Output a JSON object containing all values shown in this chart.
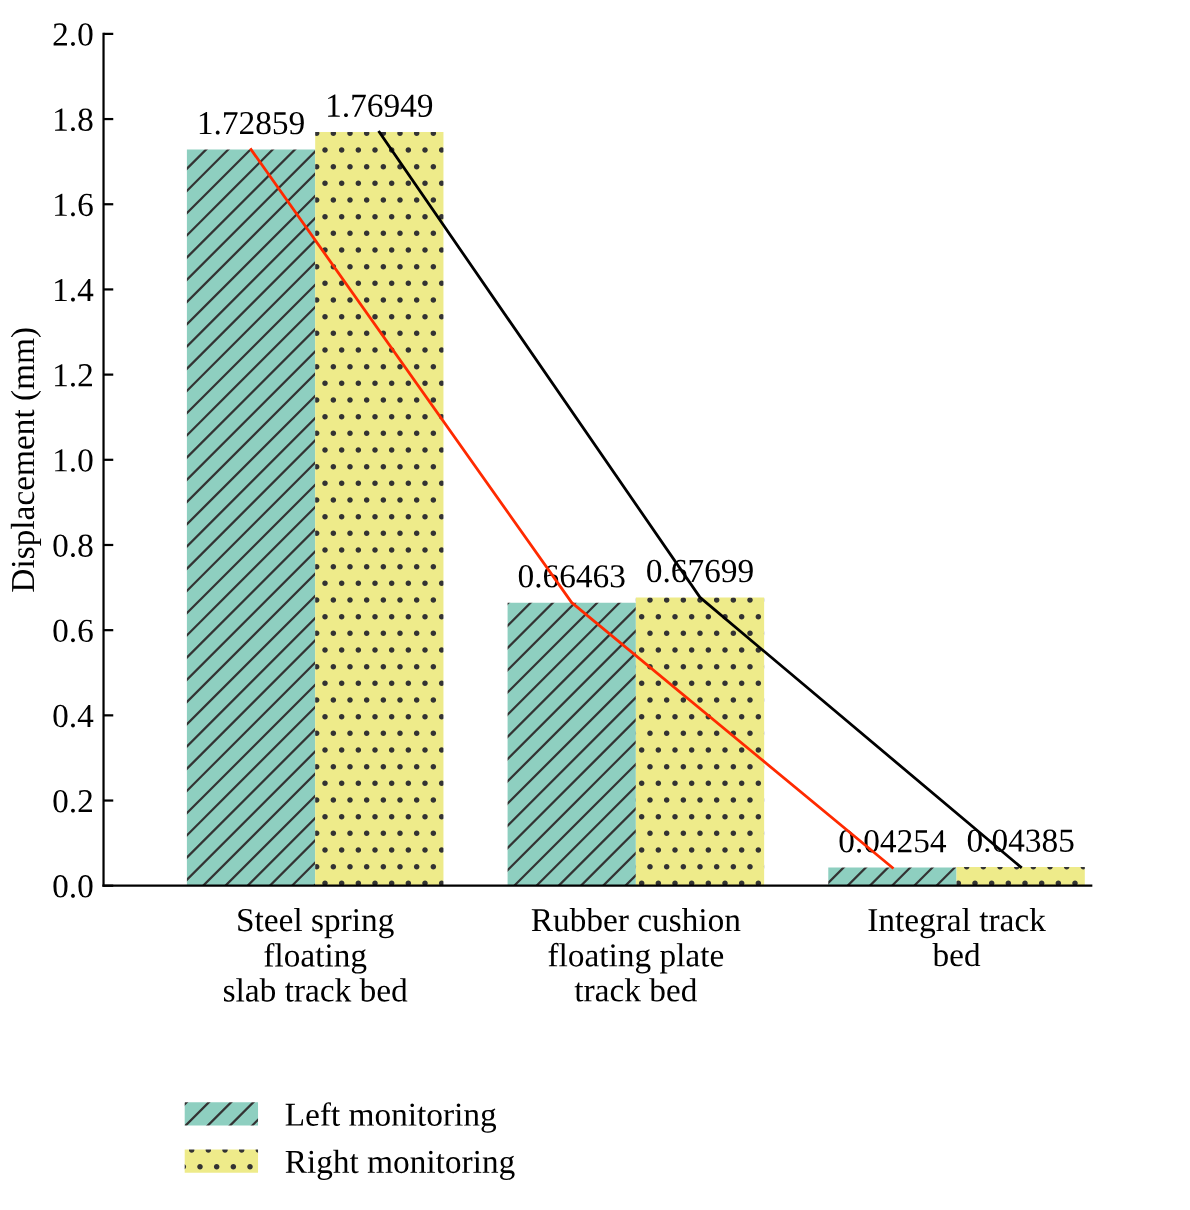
{
  "chart_data": {
    "type": "bar",
    "ylabel": "Displacement (mm)",
    "categories": [
      "Steel spring\nfloating\nslab track bed",
      "Rubber cushion\nfloating plate\ntrack bed",
      "Integral track\nbed"
    ],
    "series": [
      {
        "name": "Left monitoring",
        "color": "#8ecfc0",
        "values": [
          1.72859,
          0.66463,
          0.04254
        ],
        "value_labels": [
          "1.72859",
          "0.66463",
          "0.04254"
        ]
      },
      {
        "name": "Right monitoring",
        "color": "#eeeb8a",
        "values": [
          1.76949,
          0.67699,
          0.04385
        ],
        "value_labels": [
          "1.76949",
          "0.67699",
          "0.04385"
        ]
      },
      {
        "type": "line",
        "color": "#ff2a00",
        "values": [
          1.72859,
          0.66463,
          0.04254
        ]
      },
      {
        "type": "line",
        "color": "#000000",
        "values": [
          1.76949,
          0.67699,
          0.04385
        ]
      }
    ],
    "ylim": [
      0,
      2.0
    ],
    "yticks": [
      {
        "value": 0,
        "label": "0.0"
      },
      {
        "value": 0.2,
        "label": "0.2"
      },
      {
        "value": 0.4,
        "label": "0.4"
      },
      {
        "value": 0.6,
        "label": "0.6"
      },
      {
        "value": 0.8,
        "label": "0.8"
      },
      {
        "value": 1.0,
        "label": "1.0"
      },
      {
        "value": 1.2,
        "label": "1.2"
      },
      {
        "value": 1.4,
        "label": "1.4"
      },
      {
        "value": 1.6,
        "label": "1.6"
      },
      {
        "value": 1.8,
        "label": "1.8"
      },
      {
        "value": 2.0,
        "label": "2.0"
      }
    ],
    "grid": false,
    "legend": "bottom"
  }
}
